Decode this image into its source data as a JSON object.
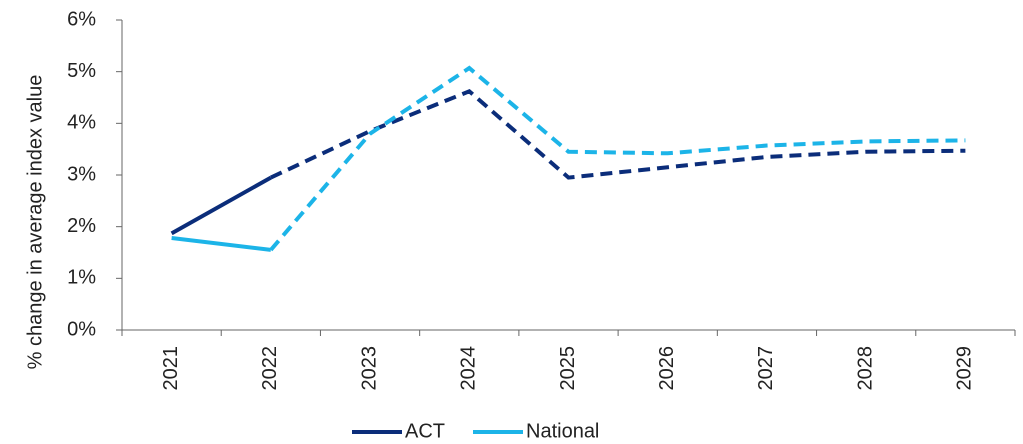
{
  "chart_data": {
    "type": "line",
    "y_label": "% change in average index value",
    "categories": [
      "2021",
      "2022",
      "2023",
      "2024",
      "2025",
      "2026",
      "2027",
      "2028",
      "2029"
    ],
    "dashed_from": "2022",
    "series": [
      {
        "name": "ACT",
        "color": "#0b2d7a",
        "values": [
          1.87,
          2.95,
          3.85,
          4.62,
          2.95,
          3.15,
          3.35,
          3.45,
          3.47
        ]
      },
      {
        "name": "National",
        "color": "#1cb4e8",
        "values": [
          1.78,
          1.55,
          3.8,
          5.07,
          3.45,
          3.42,
          3.57,
          3.65,
          3.67
        ]
      }
    ],
    "ylim": [
      0,
      6
    ],
    "yticks": [
      {
        "value": 0,
        "label": "0%"
      },
      {
        "value": 1,
        "label": "1%"
      },
      {
        "value": 2,
        "label": "2%"
      },
      {
        "value": 3,
        "label": "3%"
      },
      {
        "value": 4,
        "label": "4%"
      },
      {
        "value": 5,
        "label": "5%"
      },
      {
        "value": 6,
        "label": "6%"
      }
    ],
    "legend": "bottom"
  }
}
